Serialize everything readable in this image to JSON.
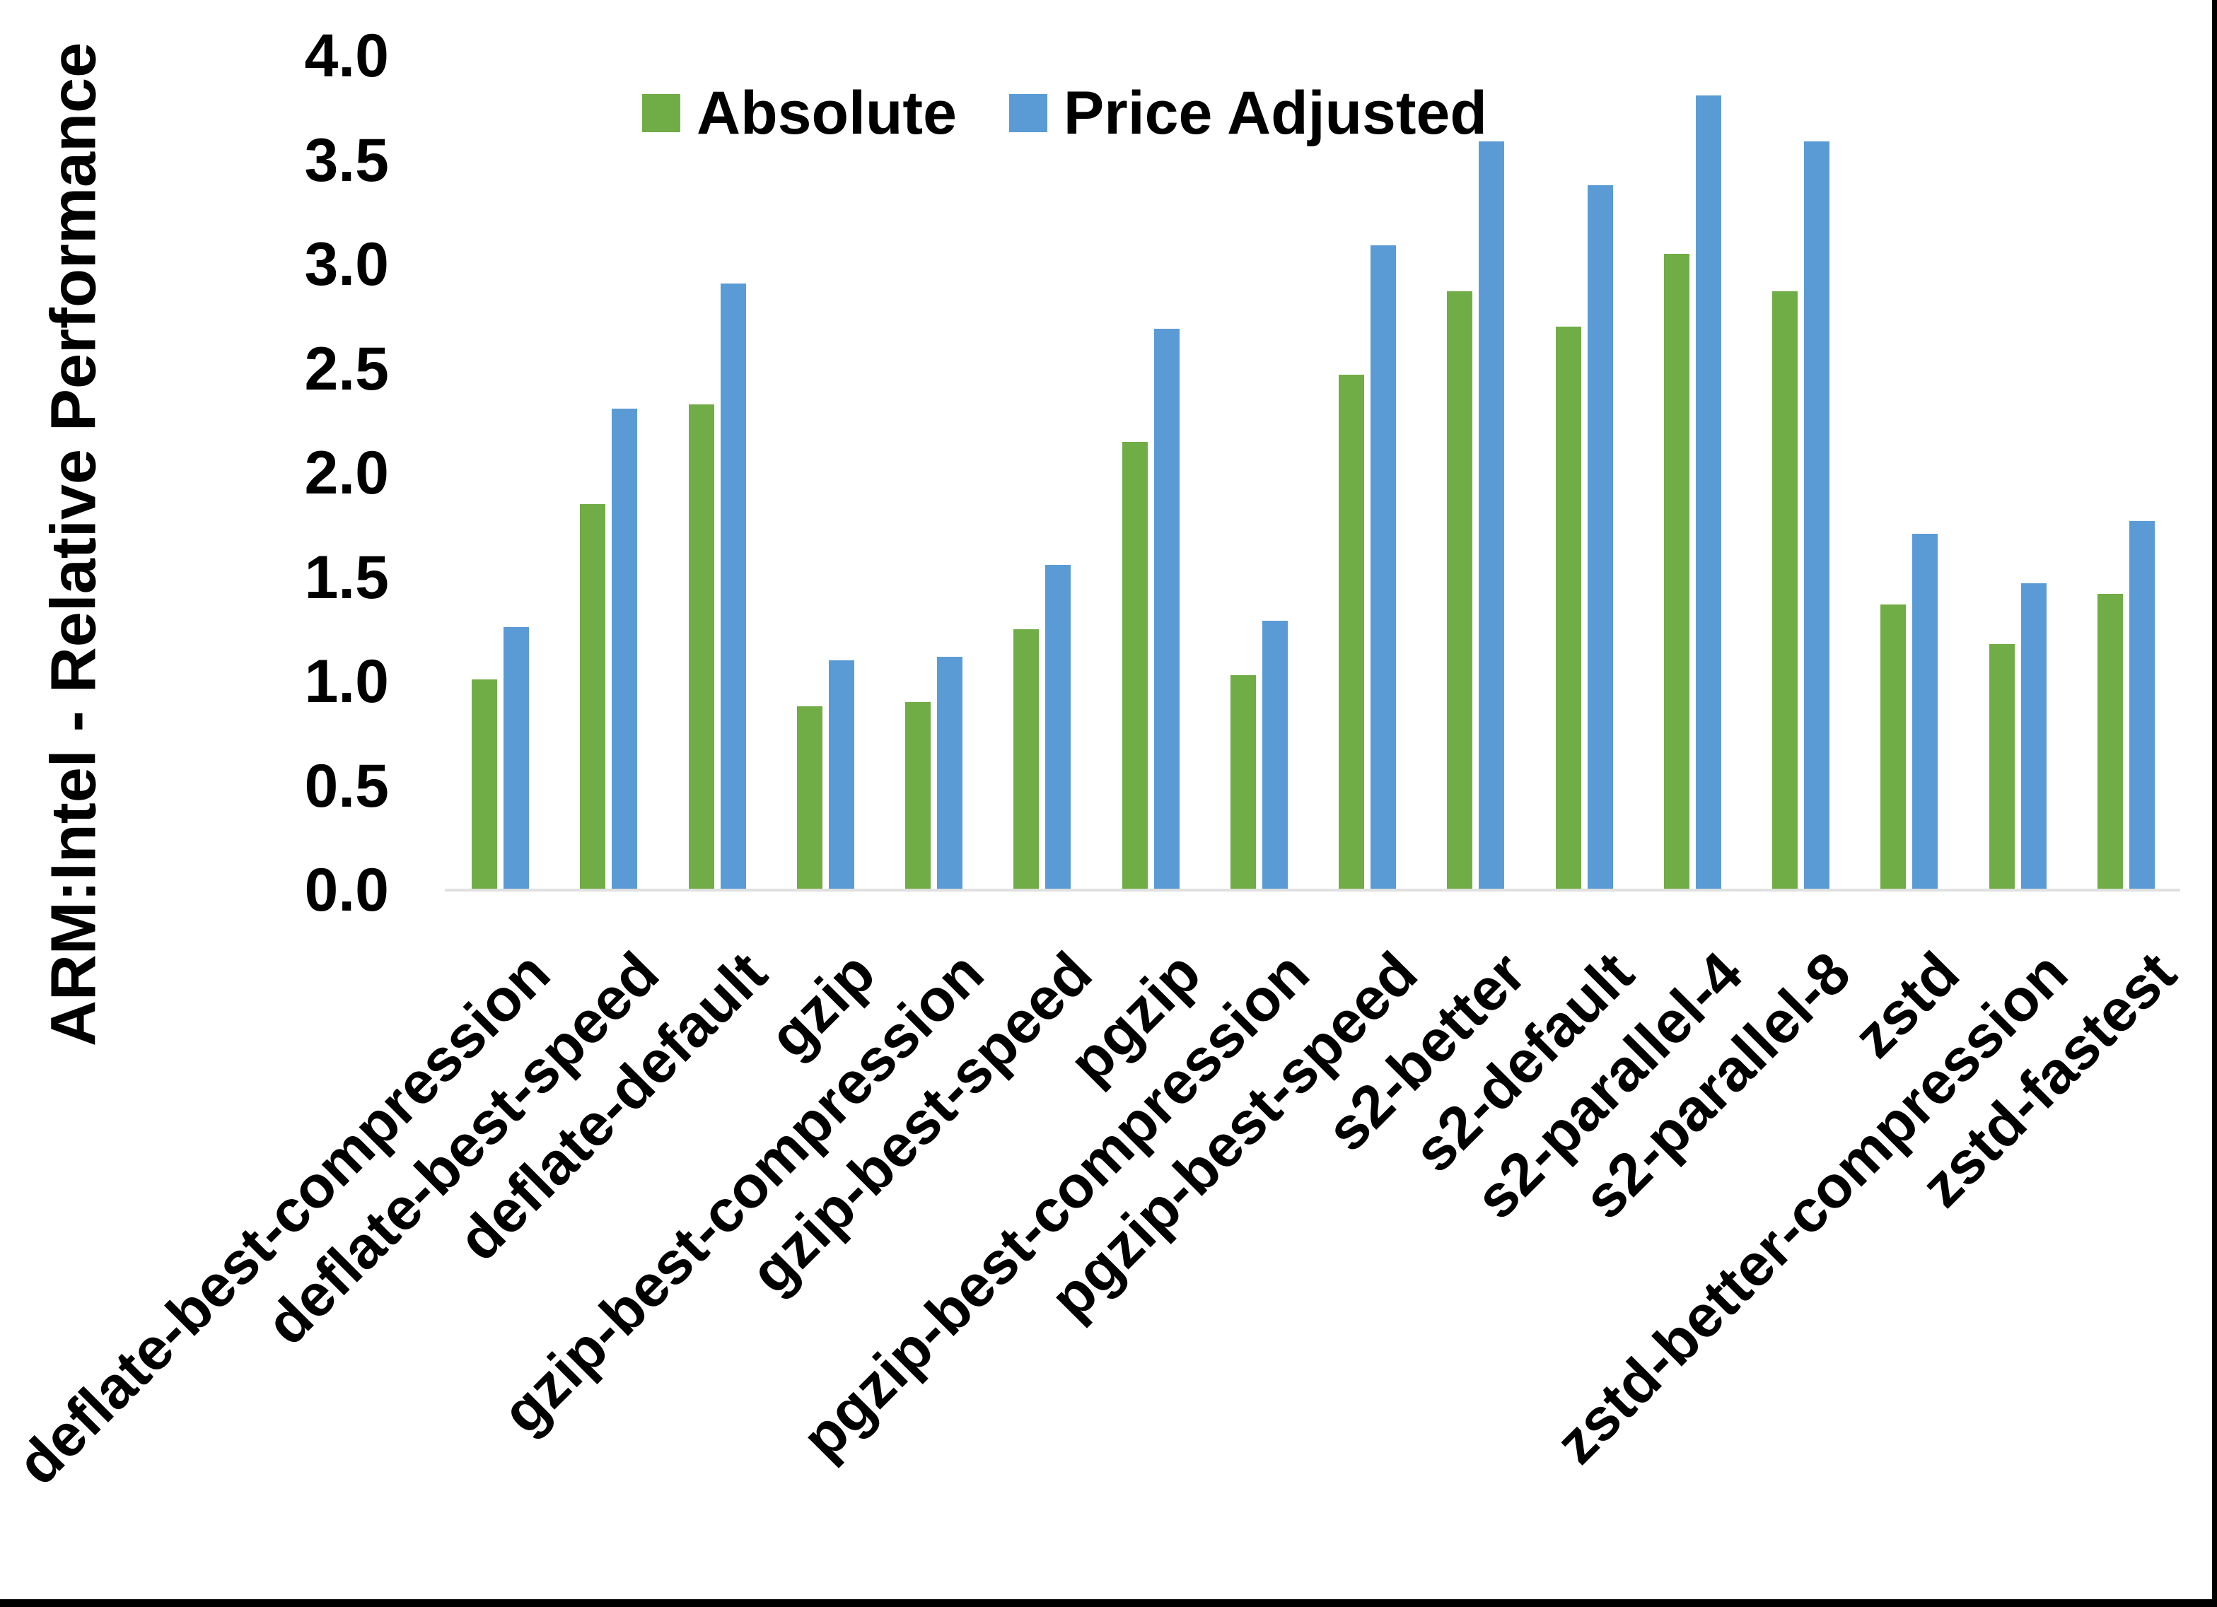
{
  "page": {
    "background": "#ffffff",
    "frame_color": "#000000"
  },
  "chart_data": {
    "type": "bar",
    "title": "",
    "xlabel": "",
    "ylabel": "ARM:Intel - Relative Performance",
    "ylim": [
      0.0,
      4.0
    ],
    "ytick_labels": [
      "0.0",
      "0.5",
      "1.0",
      "1.5",
      "2.0",
      "2.5",
      "3.0",
      "3.5",
      "4.0"
    ],
    "grid": false,
    "legend_position": "top-center",
    "axis_line_color": "#e0e0e0",
    "categories": [
      "deflate-best-compression",
      "deflate-best-speed",
      "deflate-default",
      "gzip",
      "gzip-best-compression",
      "gzip-best-speed",
      "pgzip",
      "pgzip-best-compression",
      "pgzip-best-speed",
      "s2-better",
      "s2-default",
      "s2-parallel-4",
      "s2-parallel-8",
      "zstd",
      "zstd-better-compression",
      "zstd-fastest"
    ],
    "series": [
      {
        "name": "Absolute",
        "color": "#70AD47",
        "values": [
          1.01,
          1.85,
          2.33,
          0.88,
          0.9,
          1.25,
          2.15,
          1.03,
          2.47,
          2.87,
          2.7,
          3.05,
          2.87,
          1.37,
          1.18,
          1.42
        ]
      },
      {
        "name": "Price Adjusted",
        "color": "#5B9BD5",
        "values": [
          1.26,
          2.31,
          2.91,
          1.1,
          1.12,
          1.56,
          2.69,
          1.29,
          3.09,
          3.59,
          3.38,
          3.81,
          3.59,
          1.71,
          1.47,
          1.77
        ]
      }
    ]
  },
  "legend": {
    "items": [
      {
        "label": "Absolute",
        "color": "#70AD47"
      },
      {
        "label": "Price Adjusted",
        "color": "#5B9BD5"
      }
    ]
  }
}
